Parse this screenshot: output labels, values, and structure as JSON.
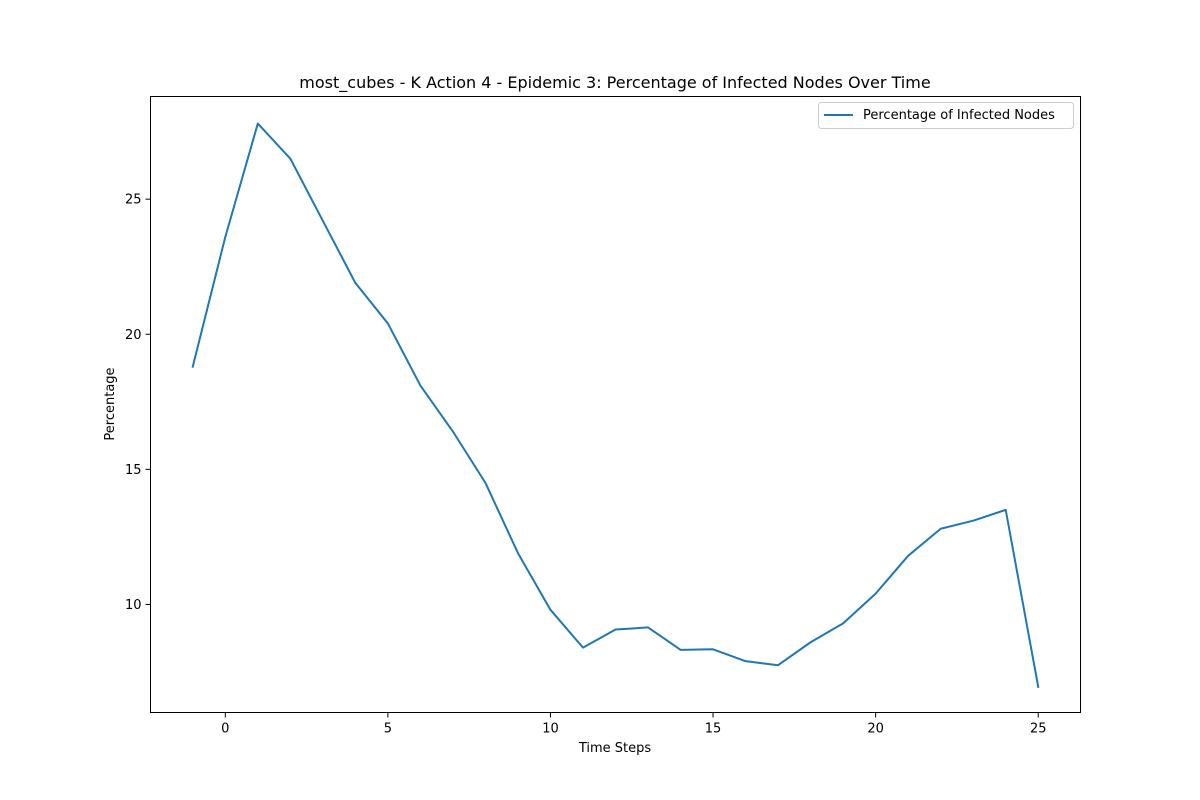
{
  "chart_data": {
    "type": "line",
    "title": "most_cubes - K Action 4 - Epidemic 3: Percentage of Infected Nodes Over Time",
    "xlabel": "Time Steps",
    "ylabel": "Percentage",
    "xlim": [
      -2.3,
      26.3
    ],
    "ylim": [
      6.0,
      28.8
    ],
    "xticks": [
      0,
      5,
      10,
      15,
      20,
      25
    ],
    "yticks": [
      10,
      15,
      20,
      25
    ],
    "grid": false,
    "legend_position": "top-right",
    "series": [
      {
        "name": "Percentage of Infected Nodes",
        "color": "#1f77b4",
        "x": [
          -1,
          0,
          1,
          2,
          3,
          4,
          5,
          6,
          7,
          8,
          9,
          10,
          11,
          12,
          13,
          14,
          15,
          16,
          17,
          18,
          19,
          20,
          21,
          22,
          23,
          24,
          25
        ],
        "y": [
          18.8,
          23.6,
          27.8,
          26.5,
          24.2,
          21.9,
          20.4,
          18.1,
          16.4,
          14.5,
          11.9,
          9.8,
          8.4,
          9.07,
          9.15,
          8.32,
          8.34,
          7.9,
          7.75,
          8.6,
          9.3,
          10.4,
          11.8,
          12.8,
          13.1,
          13.5,
          6.95
        ]
      }
    ]
  }
}
